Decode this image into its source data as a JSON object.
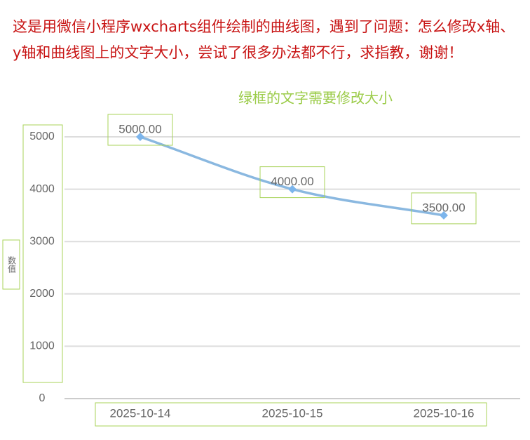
{
  "question": "这是用微信小程序wxcharts组件绘制的曲线图，遇到了问题：怎么修改x轴、y轴和曲线图上的文字大小，尝试了很多办法都不行，求指教，谢谢！",
  "chart_data": {
    "type": "line",
    "annotation": "绿框的文字需要修改大小",
    "y_label": "数值",
    "categories": [
      "2025-10-14",
      "2025-10-15",
      "2025-10-16"
    ],
    "series": [
      {
        "name": null,
        "color": "#7cb5ec",
        "values": [
          5000,
          4000,
          3500
        ],
        "value_labels": [
          "5000.00",
          "4000.00",
          "3500.00"
        ]
      }
    ],
    "ylim": [
      0,
      5000
    ],
    "yticks": [
      0,
      1000,
      2000,
      3000,
      4000,
      5000
    ],
    "grid": true
  }
}
